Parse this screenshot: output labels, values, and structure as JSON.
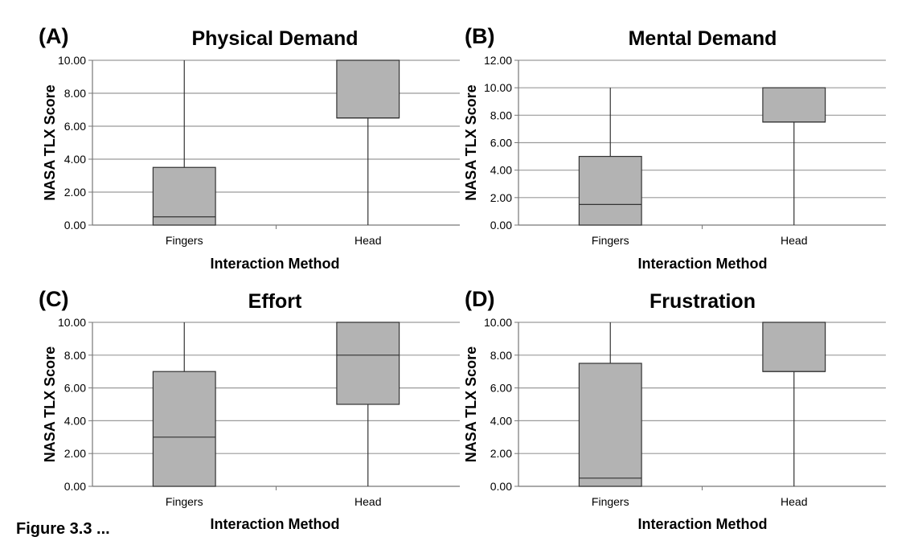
{
  "caption": "Figure 3.3 ...",
  "chart_data": [
    {
      "type": "box",
      "panel_letter": "(A)",
      "title": "Physical Demand",
      "xlabel": "Interaction Method",
      "ylabel": "NASA TLX Score",
      "ylim": [
        0,
        10
      ],
      "yticks": [
        "0.00",
        "2.00",
        "4.00",
        "6.00",
        "8.00",
        "10.00"
      ],
      "yticks_values": [
        0,
        2,
        4,
        6,
        8,
        10
      ],
      "grid": true,
      "fill_color": "#b3b3b3",
      "categories": [
        "Fingers",
        "Head"
      ],
      "boxes": [
        {
          "category": "Fingers",
          "min": 0,
          "q1": 0,
          "median": 0.5,
          "q3": 3.5,
          "max": 10
        },
        {
          "category": "Head",
          "min": 0,
          "q1": 6.5,
          "median": 6.5,
          "q3": 10,
          "max": 10
        }
      ]
    },
    {
      "type": "box",
      "panel_letter": "(B)",
      "title": "Mental Demand",
      "xlabel": "Interaction Method",
      "ylabel": "NASA TLX Score",
      "ylim": [
        0,
        12
      ],
      "yticks": [
        "0.00",
        "2.00",
        "4.00",
        "6.00",
        "8.00",
        "10.00",
        "12.00"
      ],
      "yticks_values": [
        0,
        2,
        4,
        6,
        8,
        10,
        12
      ],
      "grid": true,
      "fill_color": "#b3b3b3",
      "categories": [
        "Fingers",
        "Head"
      ],
      "boxes": [
        {
          "category": "Fingers",
          "min": 0,
          "q1": 0,
          "median": 1.5,
          "q3": 5,
          "max": 10
        },
        {
          "category": "Head",
          "min": 0,
          "q1": 7.5,
          "median": 7.5,
          "q3": 10,
          "max": 10
        }
      ]
    },
    {
      "type": "box",
      "panel_letter": "(C)",
      "title": "Effort",
      "xlabel": "Interaction Method",
      "ylabel": "NASA TLX Score",
      "ylim": [
        0,
        10
      ],
      "yticks": [
        "0.00",
        "2.00",
        "4.00",
        "6.00",
        "8.00",
        "10.00"
      ],
      "yticks_values": [
        0,
        2,
        4,
        6,
        8,
        10
      ],
      "grid": true,
      "fill_color": "#b3b3b3",
      "categories": [
        "Fingers",
        "Head"
      ],
      "boxes": [
        {
          "category": "Fingers",
          "min": 0,
          "q1": 0,
          "median": 3,
          "q3": 7,
          "max": 10
        },
        {
          "category": "Head",
          "min": 0,
          "q1": 5,
          "median": 8,
          "q3": 10,
          "max": 10
        }
      ]
    },
    {
      "type": "box",
      "panel_letter": "(D)",
      "title": "Frustration",
      "xlabel": "Interaction Method",
      "ylabel": "NASA TLX Score",
      "ylim": [
        0,
        10
      ],
      "yticks": [
        "0.00",
        "2.00",
        "4.00",
        "6.00",
        "8.00",
        "10.00"
      ],
      "yticks_values": [
        0,
        2,
        4,
        6,
        8,
        10
      ],
      "grid": true,
      "fill_color": "#b3b3b3",
      "categories": [
        "Fingers",
        "Head"
      ],
      "boxes": [
        {
          "category": "Fingers",
          "min": 0,
          "q1": 0,
          "median": 0.5,
          "q3": 7.5,
          "max": 10
        },
        {
          "category": "Head",
          "min": 0,
          "q1": 7,
          "median": 7,
          "q3": 10,
          "max": 10
        }
      ]
    }
  ]
}
